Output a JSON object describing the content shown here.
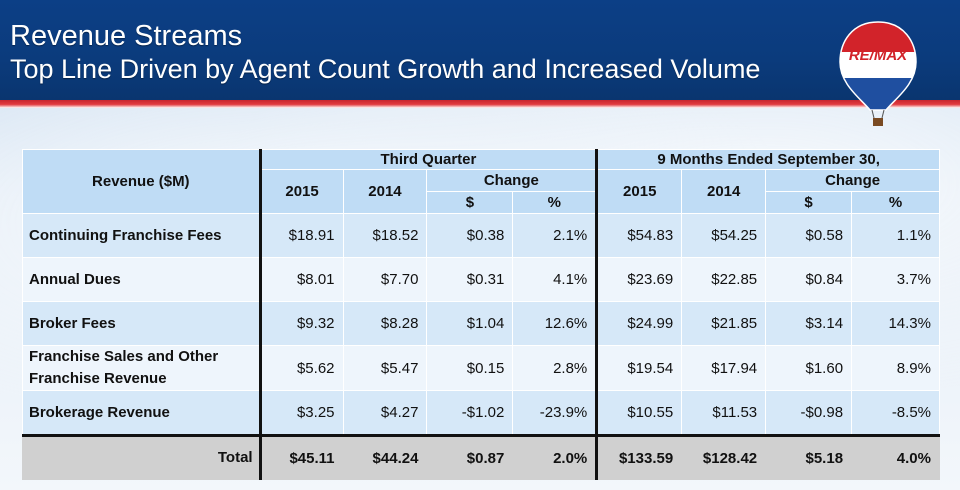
{
  "header": {
    "title": "Revenue Streams",
    "subtitle": "Top Line Driven by Agent Count Growth and Increased Volume",
    "logo_text": "RE/MAX"
  },
  "table": {
    "corner_label": "Revenue ($M)",
    "group_q": "Third Quarter",
    "group_9m": "9 Months Ended September 30,",
    "col_2015": "2015",
    "col_2014": "2014",
    "col_change": "Change",
    "col_dollar": "$",
    "col_pct": "%",
    "rows": [
      {
        "label": "Continuing Franchise Fees",
        "q15": "$18.91",
        "q14": "$18.52",
        "qd": "$0.38",
        "qp": "2.1%",
        "m15": "$54.83",
        "m14": "$54.25",
        "md": "$0.58",
        "mp": "1.1%"
      },
      {
        "label": "Annual Dues",
        "q15": "$8.01",
        "q14": "$7.70",
        "qd": "$0.31",
        "qp": "4.1%",
        "m15": "$23.69",
        "m14": "$22.85",
        "md": "$0.84",
        "mp": "3.7%"
      },
      {
        "label": "Broker Fees",
        "q15": "$9.32",
        "q14": "$8.28",
        "qd": "$1.04",
        "qp": "12.6%",
        "m15": "$24.99",
        "m14": "$21.85",
        "md": "$3.14",
        "mp": "14.3%"
      },
      {
        "label1": "Franchise Sales and Other",
        "label2": "Franchise Revenue",
        "q15": "$5.62",
        "q14": "$5.47",
        "qd": "$0.15",
        "qp": "2.8%",
        "m15": "$19.54",
        "m14": "$17.94",
        "md": "$1.60",
        "mp": "8.9%"
      },
      {
        "label": "Brokerage Revenue",
        "q15": "$3.25",
        "q14": "$4.27",
        "qd": "-$1.02",
        "qp": "-23.9%",
        "m15": "$10.55",
        "m14": "$11.53",
        "md": "-$0.98",
        "mp": "-8.5%"
      }
    ],
    "total": {
      "label": "Total",
      "q15": "$45.11",
      "q14": "$44.24",
      "qd": "$0.87",
      "qp": "2.0%",
      "m15": "$133.59",
      "m14": "$128.42",
      "md": "$5.18",
      "mp": "4.0%"
    }
  },
  "colors": {
    "header_blue": "#0c3f86",
    "accent_red": "#c7262f",
    "row_blue": "#d6e8f8",
    "total_gray": "#d0d0d0"
  }
}
